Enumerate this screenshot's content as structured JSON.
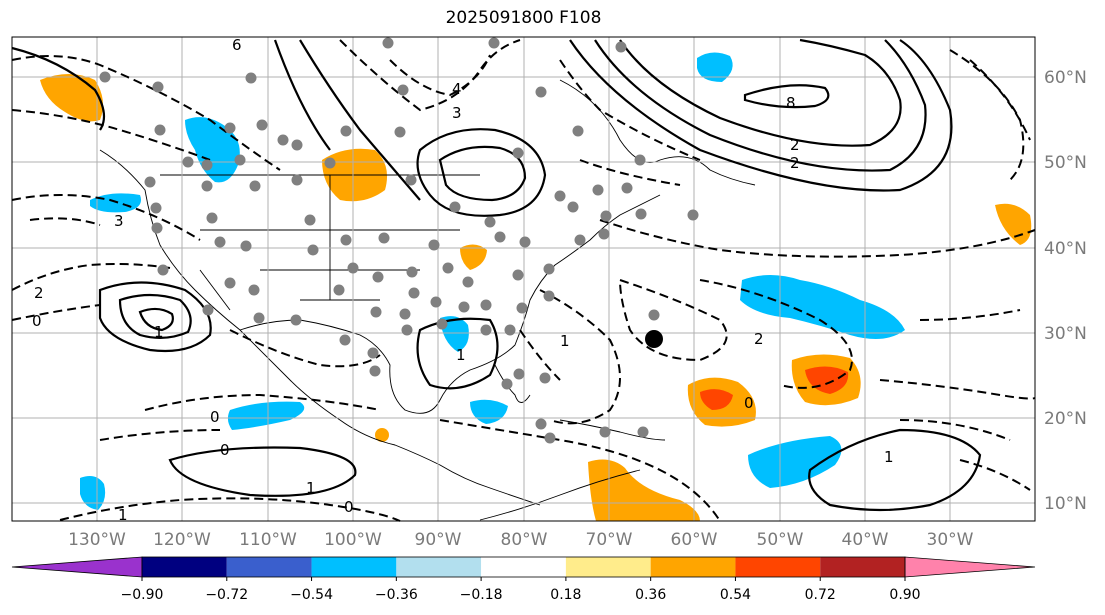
{
  "title": "2025091800 F108",
  "map": {
    "lat_labels": [
      "60°N",
      "50°N",
      "40°N",
      "30°N",
      "20°N",
      "10°N"
    ],
    "lon_labels": [
      "130°W",
      "120°W",
      "110°W",
      "100°W",
      "90°W",
      "80°W",
      "70°W",
      "60°W",
      "50°W",
      "40°W",
      "30°W"
    ],
    "contour_labels": [
      "6",
      "4",
      "8",
      "2",
      "3",
      "1",
      "0",
      "2",
      "1",
      "0",
      "1",
      "0",
      "1",
      "0",
      "2",
      "1",
      "0",
      "1",
      "2",
      "3"
    ],
    "point_marker": "large black dot"
  },
  "colorbar": {
    "colors": [
      "#9a32cd",
      "#000080",
      "#3a5fcd",
      "#00bfff",
      "#b2dfee",
      "#ffffff",
      "#ffec8b",
      "#ffa500",
      "#ff4500",
      "#b22222",
      "#ff82ab"
    ],
    "ticks": [
      "−0.90",
      "−0.72",
      "−0.54",
      "−0.36",
      "−0.18",
      "0.18",
      "0.36",
      "0.54",
      "0.72",
      "0.90"
    ]
  }
}
